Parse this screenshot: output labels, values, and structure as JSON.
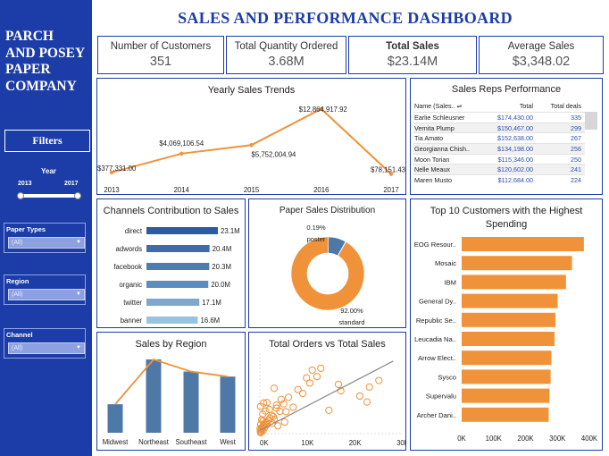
{
  "sidebar": {
    "company_lines": [
      "PARCH",
      "AND POSEY",
      "PAPER",
      "COMPANY"
    ],
    "filters_button": "Filters",
    "year": {
      "label": "Year",
      "min": "2013",
      "max": "2017"
    },
    "filters": [
      {
        "label": "Paper Types",
        "value": "(All)"
      },
      {
        "label": "Region",
        "value": "(All)"
      },
      {
        "label": "Channel",
        "value": "(All)"
      }
    ]
  },
  "dashboard_title": "SALES AND PERFORMANCE DASHBOARD",
  "kpis": [
    {
      "label": "Number of Customers",
      "value": "351"
    },
    {
      "label": "Total Quantity Ordered",
      "value": "3.68M"
    },
    {
      "label": "Total Sales",
      "value": "$23.14M"
    },
    {
      "label": "Average Sales",
      "value": "$3,348.02"
    }
  ],
  "reps": {
    "title": "Sales Reps Performance",
    "headers": [
      "Name (Sales..",
      "Total",
      "Total deals"
    ],
    "rows": [
      {
        "name": "Earlie Schleusner",
        "total": "$174,430.00",
        "deals": "335"
      },
      {
        "name": "Vernita Plump",
        "total": "$150,467.00",
        "deals": "299"
      },
      {
        "name": "Tia Amato",
        "total": "$152,638.00",
        "deals": "267"
      },
      {
        "name": "Georgianna Chish..",
        "total": "$134,198.00",
        "deals": "256"
      },
      {
        "name": "Moon Torian",
        "total": "$115,346.00",
        "deals": "250"
      },
      {
        "name": "Nelle Meaux",
        "total": "$120,602.00",
        "deals": "241"
      },
      {
        "name": "Maren Musto",
        "total": "$112,684.00",
        "deals": "224"
      }
    ]
  },
  "colors": {
    "brand": "#1c3ca8",
    "orange": "#f0923a",
    "steel": "#4e79a7",
    "light_blue": "#9ac2e3",
    "pie_blue": "#4e79a7"
  },
  "chart_data": [
    {
      "id": "yearly",
      "type": "line",
      "title": "Yearly Sales Trends",
      "x": [
        "2013",
        "2014",
        "2015",
        "2016",
        "2017"
      ],
      "values": [
        377331,
        4069106.54,
        5752004.94,
        12864917.92,
        78151.43
      ],
      "labels": [
        "$377,331.00",
        "$4,069,106.54",
        "$5,752,004.94",
        "$12,864,917.92",
        "$78,151.43"
      ]
    },
    {
      "id": "channels",
      "type": "bar",
      "title": "Channels Contribution to Sales",
      "categories": [
        "direct",
        "adwords",
        "facebook",
        "organic",
        "twitter",
        "banner"
      ],
      "values": [
        23.1,
        20.4,
        20.3,
        20.0,
        17.1,
        16.6
      ],
      "labels": [
        "23.1M",
        "20.4M",
        "20.3M",
        "20.0M",
        "17.1M",
        "16.6M"
      ],
      "colors": [
        "#2b5ba0",
        "#3c6ca9",
        "#4c7cb3",
        "#5d8dbd",
        "#7ea7cf",
        "#9ac2e3"
      ]
    },
    {
      "id": "paper",
      "type": "pie",
      "title": "Paper Sales Distribution",
      "slices": [
        {
          "name": "poster",
          "value": 0.19,
          "label": "0.19%",
          "color": "#4e79a7"
        },
        {
          "name": "standard",
          "value": 92.0,
          "label": "92.00%",
          "color": "#f0923a"
        },
        {
          "name": "",
          "value": 7.81,
          "label": "",
          "color": "#4e79a7"
        }
      ]
    },
    {
      "id": "top10",
      "type": "bar",
      "title": "Top 10 Customers with the Highest Spending",
      "categories": [
        "EOG Resour..",
        "Mosaic",
        "IBM",
        "General Dy..",
        "Republic Se..",
        "Leucadia Na..",
        "Arrow Elect..",
        "Sysco",
        "Supervalu",
        "Archer Dani.."
      ],
      "values": [
        382873,
        345618,
        326819,
        300694,
        293861,
        291048,
        281182,
        278576,
        275288,
        272672
      ],
      "xticks": [
        "0K",
        "100K",
        "200K",
        "300K",
        "400K"
      ],
      "xlim": [
        0,
        400000
      ]
    },
    {
      "id": "region",
      "type": "bar",
      "title": "Sales by Region",
      "categories": [
        "Midwest",
        "Northeast",
        "Southeast",
        "West"
      ],
      "values": [
        3.01,
        7.74,
        6.46,
        5.93
      ]
    },
    {
      "id": "scatter",
      "type": "scatter",
      "title": "Total Orders vs Total Sales",
      "xticks": [
        "0K",
        "10K",
        "20K",
        "30K"
      ],
      "xlim": [
        0,
        30000
      ],
      "ylim": [
        0,
        30000
      ],
      "points": [
        [
          120,
          900
        ],
        [
          250,
          1500
        ],
        [
          400,
          2100
        ],
        [
          600,
          2600
        ],
        [
          800,
          3100
        ],
        [
          300,
          700
        ],
        [
          500,
          1800
        ],
        [
          900,
          3800
        ],
        [
          1200,
          4200
        ],
        [
          1500,
          3500
        ],
        [
          1800,
          5200
        ],
        [
          2100,
          6000
        ],
        [
          700,
          1200
        ],
        [
          1000,
          2400
        ],
        [
          1400,
          4600
        ],
        [
          2500,
          7000
        ],
        [
          3000,
          5600
        ],
        [
          3500,
          9800
        ],
        [
          4200,
          8600
        ],
        [
          5000,
          11500
        ],
        [
          2800,
          6600
        ],
        [
          6000,
          14000
        ],
        [
          8000,
          17000
        ],
        [
          10500,
          19500
        ],
        [
          12000,
          22000
        ],
        [
          11000,
          24500
        ],
        [
          12800,
          25200
        ],
        [
          9800,
          21500
        ],
        [
          4500,
          13200
        ],
        [
          23000,
          18000
        ],
        [
          21000,
          14500
        ],
        [
          22500,
          12200
        ],
        [
          25000,
          20500
        ],
        [
          14500,
          9000
        ],
        [
          3000,
          17500
        ],
        [
          1500,
          12000
        ],
        [
          3500,
          11000
        ],
        [
          5500,
          8500
        ],
        [
          7000,
          10200
        ],
        [
          400,
          5400
        ],
        [
          200,
          3600
        ],
        [
          600,
          7500
        ],
        [
          2000,
          9300
        ],
        [
          9000,
          15500
        ],
        [
          16500,
          19000
        ],
        [
          17000,
          16500
        ],
        [
          150,
          10500
        ],
        [
          800,
          11800
        ],
        [
          1200,
          8700
        ],
        [
          2600,
          4000
        ],
        [
          3800,
          3000
        ],
        [
          5200,
          4500
        ],
        [
          650,
          4800
        ],
        [
          50,
          2000
        ],
        [
          150,
          400
        ]
      ],
      "trend": [
        [
          0,
          1200
        ],
        [
          28000,
          28000
        ]
      ]
    }
  ]
}
